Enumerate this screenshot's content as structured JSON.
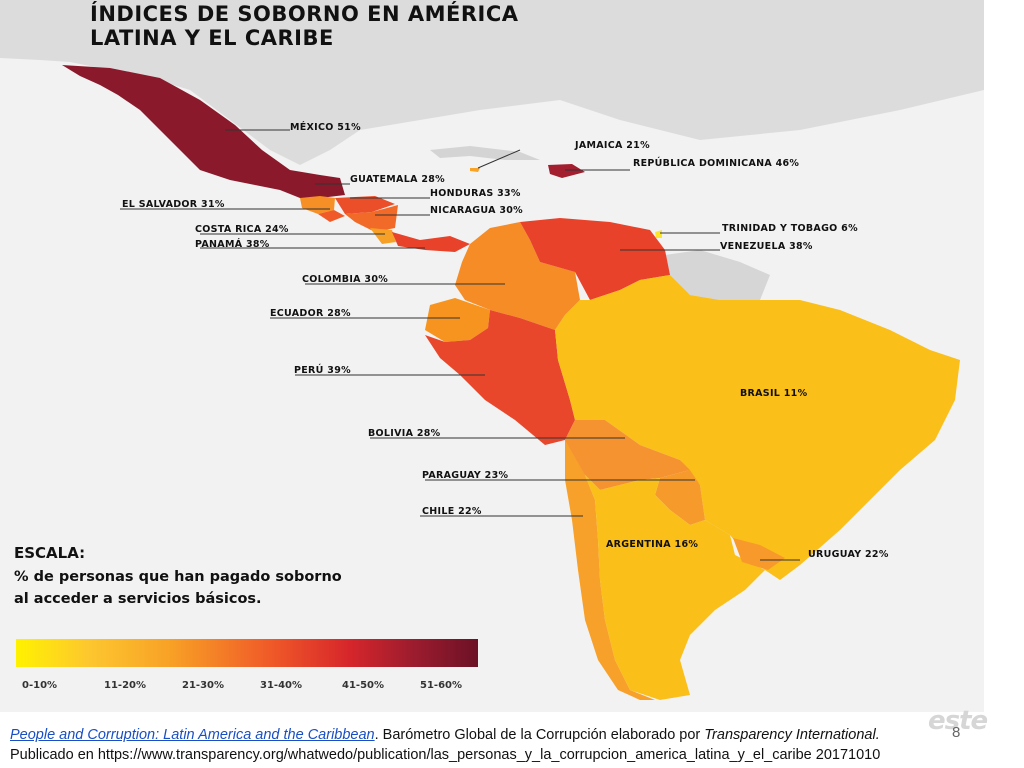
{
  "title": {
    "line1": "ÍNDICES DE SOBORNO EN AMÉRICA",
    "line2": "LATINA Y EL CARIBE"
  },
  "countries": [
    {
      "id": "mexico",
      "label": "MÉXICO 51%",
      "value": 51,
      "color": "#8a1a2b"
    },
    {
      "id": "jamaica",
      "label": "JAMAICA 21%",
      "value": 21,
      "color": "#f8a226"
    },
    {
      "id": "dominicana",
      "label": "REPÚBLICA DOMINICANA 46%",
      "value": 46,
      "color": "#a31e2e"
    },
    {
      "id": "guatemala",
      "label": "GUATEMALA 28%",
      "value": 28,
      "color": "#f58f26"
    },
    {
      "id": "honduras",
      "label": "HONDURAS 33%",
      "value": 33,
      "color": "#ea4f2a"
    },
    {
      "id": "salvador",
      "label": "EL SALVADOR 31%",
      "value": 31,
      "color": "#ef5a28"
    },
    {
      "id": "nicaragua",
      "label": "NICARAGUA 30%",
      "value": 30,
      "color": "#f26a27"
    },
    {
      "id": "costarica",
      "label": "COSTA RICA 24%",
      "value": 24,
      "color": "#f7a027"
    },
    {
      "id": "panama",
      "label": "PANAMÁ 38%",
      "value": 38,
      "color": "#e8432a"
    },
    {
      "id": "trinidad",
      "label": "TRINIDAD Y TOBAGO 6%",
      "value": 6,
      "color": "#fde62a"
    },
    {
      "id": "venezuela",
      "label": "VENEZUELA 38%",
      "value": 38,
      "color": "#e8432a"
    },
    {
      "id": "colombia",
      "label": "COLOMBIA 30%",
      "value": 30,
      "color": "#f58c26"
    },
    {
      "id": "ecuador",
      "label": "ECUADOR 28%",
      "value": 28,
      "color": "#f7941f"
    },
    {
      "id": "peru",
      "label": "PERÚ 39%",
      "value": 39,
      "color": "#e8472b"
    },
    {
      "id": "brasil",
      "label": "BRASIL 11%",
      "value": 11,
      "color": "#fbbf1a"
    },
    {
      "id": "bolivia",
      "label": "BOLIVIA 28%",
      "value": 28,
      "color": "#f69331"
    },
    {
      "id": "paraguay",
      "label": "PARAGUAY 23%",
      "value": 23,
      "color": "#f69a2c"
    },
    {
      "id": "chile",
      "label": "CHILE 22%",
      "value": 22,
      "color": "#f7a12a"
    },
    {
      "id": "argentina",
      "label": "ARGENTINA 16%",
      "value": 16,
      "color": "#fbbf1a"
    },
    {
      "id": "uruguay",
      "label": "URUGUAY 22%",
      "value": 22,
      "color": "#f79a2b"
    }
  ],
  "scale": {
    "title": "ESCALA:",
    "desc_line1": "% de personas que han pagado soborno",
    "desc_line2": "al acceder a servicios básicos.",
    "ticks": [
      "0-10%",
      "11-20%",
      "21-30%",
      "31-40%",
      "41-50%",
      "51-60%"
    ]
  },
  "footer": {
    "link_text": "People and Corruption: Latin America and the Caribbean",
    "text_after_link": ". Barómetro Global de la Corrupción elaborado por ",
    "org": "Transparency International.",
    "line2": "Publicado en https://www.transparency.org/whatwedo/publication/las_personas_y_la_corrupcion_america_latina_y_el_caribe 20171010"
  },
  "page_number": "8",
  "watermark": "este"
}
